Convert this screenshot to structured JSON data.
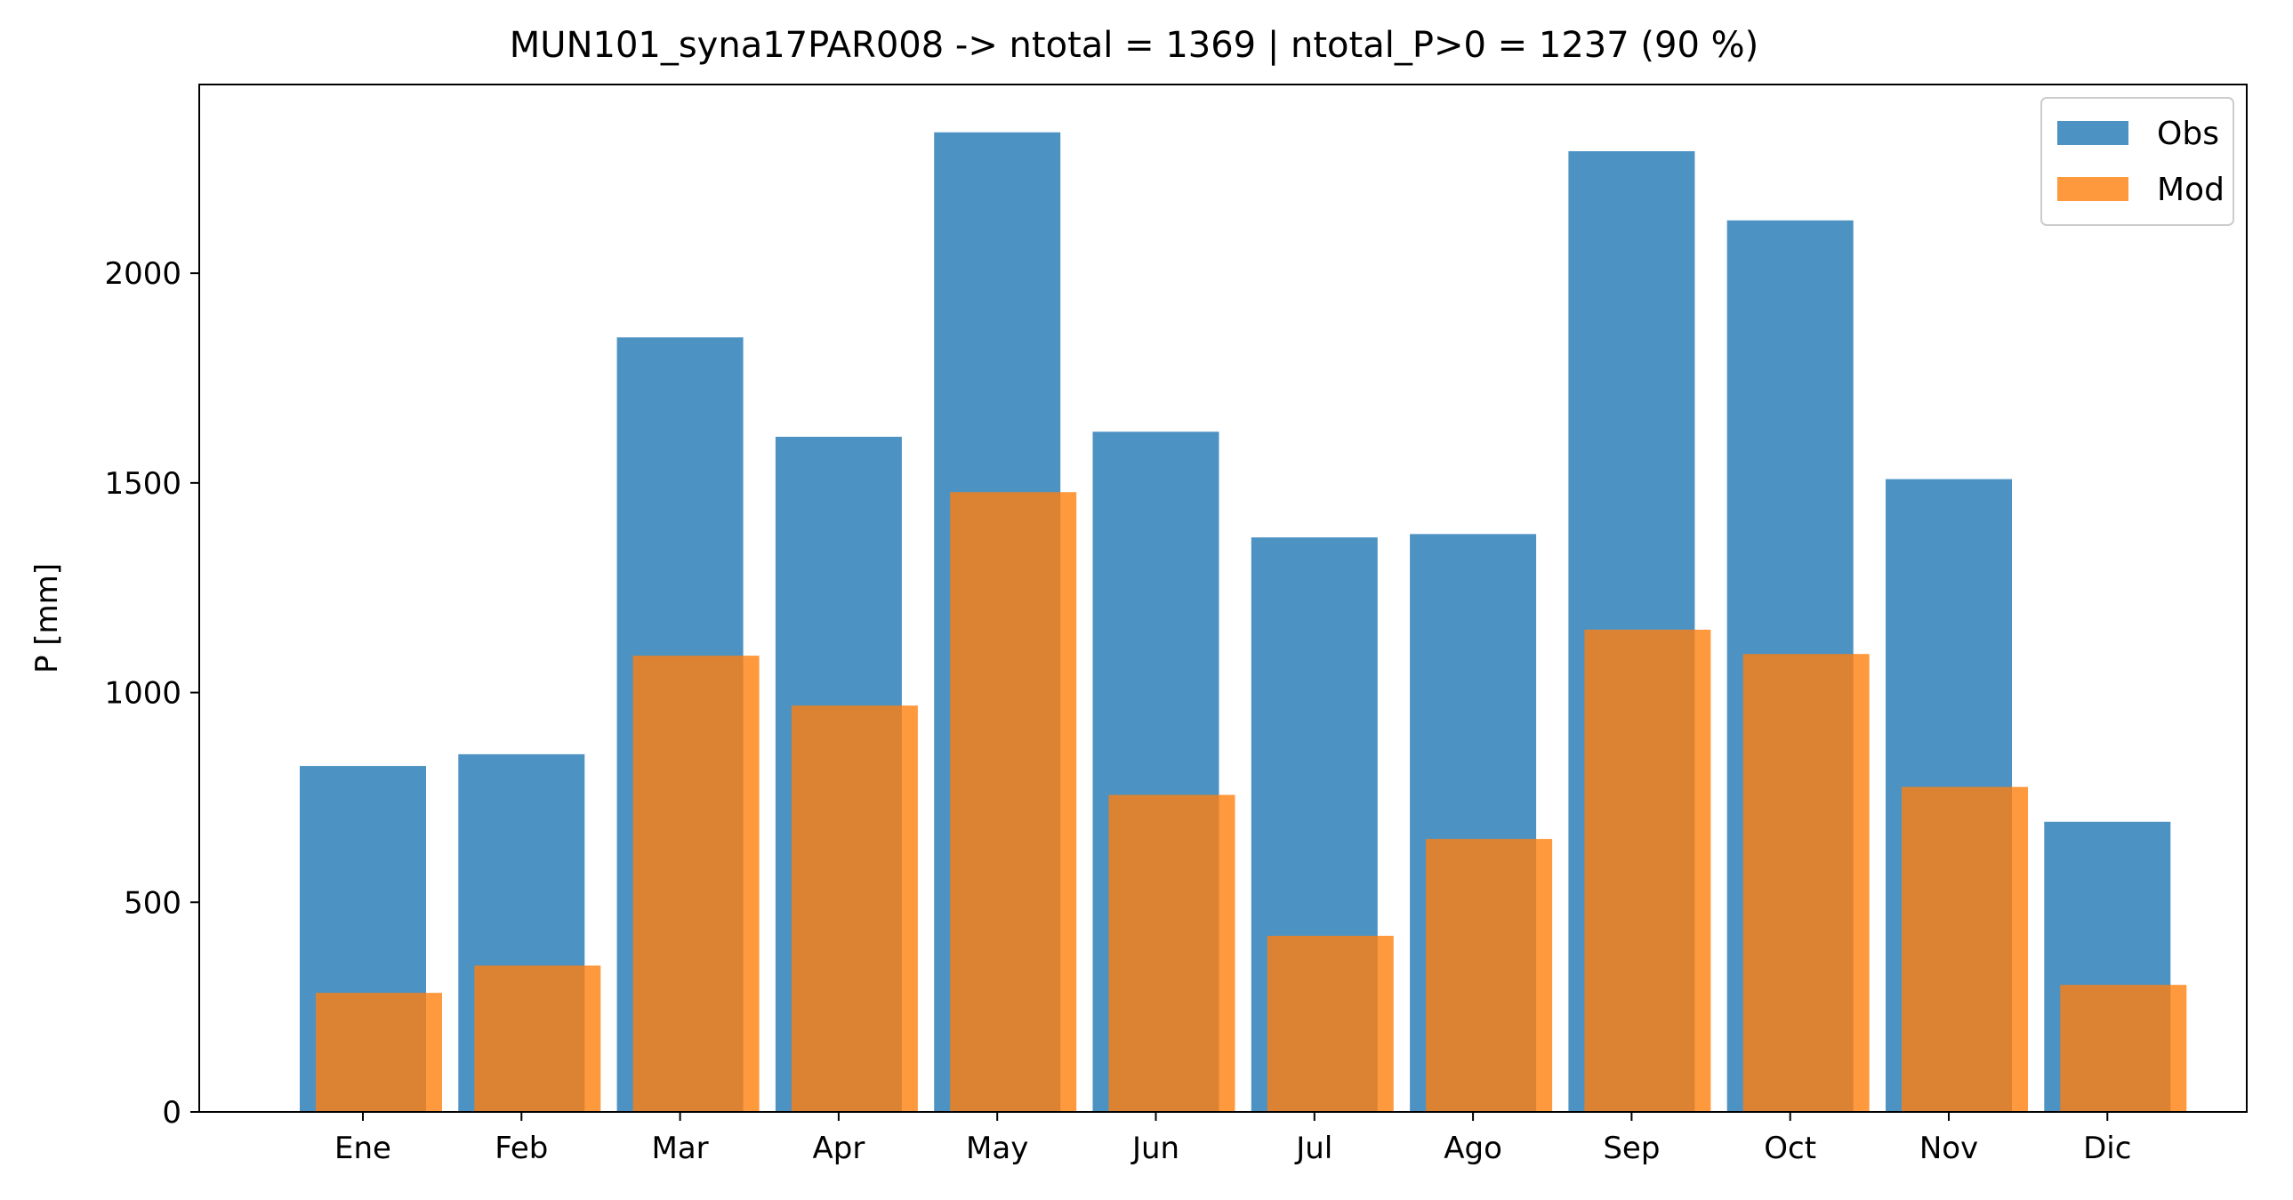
{
  "chart_data": {
    "type": "bar",
    "title": "MUN101_syna17PAR008 -> ntotal = 1369 | ntotal_P>0 = 1237 (90 %)",
    "xlabel": "",
    "ylabel": "P [mm]",
    "categories": [
      "Ene",
      "Feb",
      "Mar",
      "Apr",
      "May",
      "Jun",
      "Jul",
      "Ago",
      "Sep",
      "Oct",
      "Nov",
      "Dic"
    ],
    "series": [
      {
        "name": "Obs",
        "color": "#1f77b4",
        "values": [
          825,
          853,
          1847,
          1610,
          2336,
          1622,
          1370,
          1378,
          2291,
          2126,
          1509,
          692
        ]
      },
      {
        "name": "Mod",
        "color": "#ff7f0e",
        "values": [
          284,
          349,
          1088,
          969,
          1478,
          756,
          420,
          651,
          1150,
          1092,
          775,
          303
        ]
      }
    ],
    "ylim": [
      0,
      2450
    ],
    "yticks": [
      0,
      500,
      1000,
      1500,
      2000
    ],
    "legend_position": "top-right",
    "grid": false
  }
}
